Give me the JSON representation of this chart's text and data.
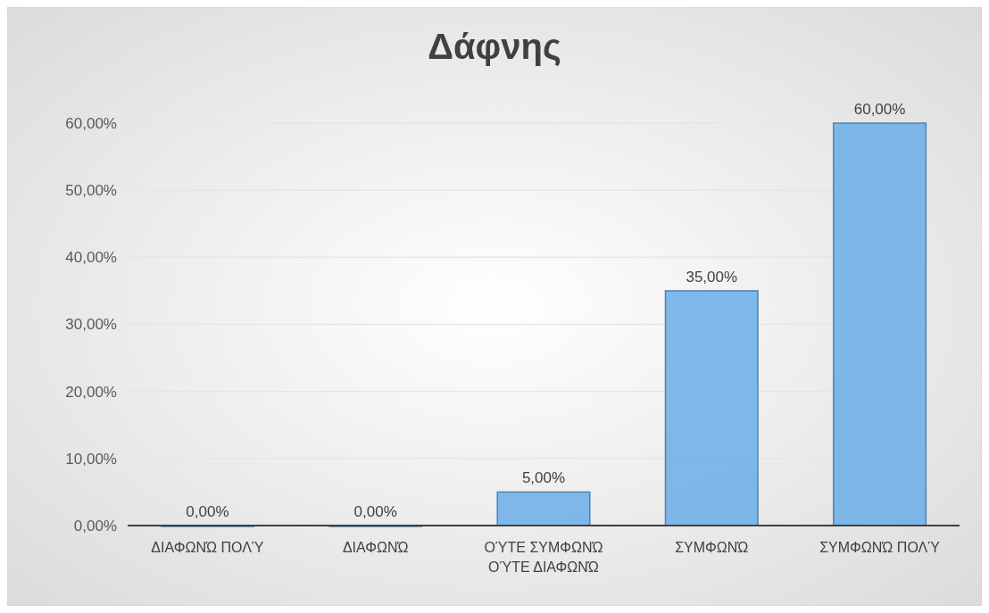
{
  "chart_data": {
    "type": "bar",
    "title": "Δάφνης",
    "categories": [
      "ΔΙΑΦΩΝΏ ΠΟΛΎ",
      "ΔΙΑΦΩΝΏ",
      "ΟΎΤΕ ΣΥΜΦΩΝΏ ΟΎΤΕ ΔΙΑΦΩΝΏ",
      "ΣΥΜΦΩΝΏ",
      "ΣΥΜΦΩΝΏ ΠΟΛΎ"
    ],
    "values": [
      0,
      0,
      5,
      35,
      60
    ],
    "value_labels": [
      "0,00%",
      "0,00%",
      "5,00%",
      "35,00%",
      "60,00%"
    ],
    "color": "#6aaee8",
    "ylim": [
      0,
      60
    ],
    "yticks": [
      {
        "value": 0,
        "label": "0,00%"
      },
      {
        "value": 10,
        "label": "10,00%"
      },
      {
        "value": 20,
        "label": "20,00%"
      },
      {
        "value": 30,
        "label": "30,00%"
      },
      {
        "value": 40,
        "label": "40,00%"
      },
      {
        "value": 50,
        "label": "50,00%"
      },
      {
        "value": 60,
        "label": "60,00%"
      }
    ],
    "grid": "y"
  }
}
